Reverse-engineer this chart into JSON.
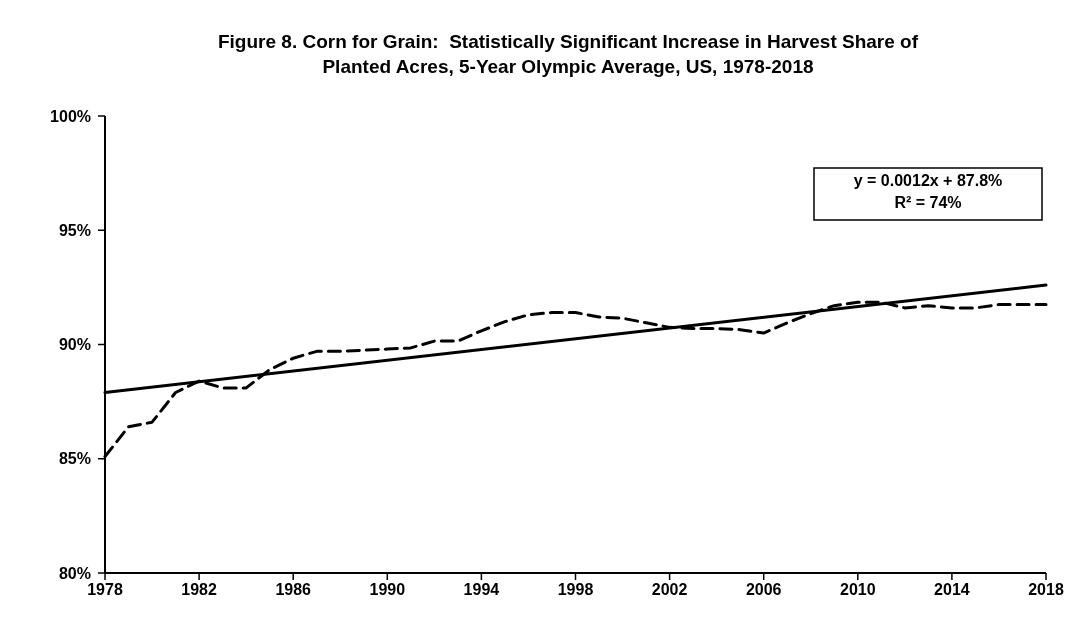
{
  "chart_data": {
    "type": "line",
    "title": "Figure 8. Corn for Grain:  Statistically Significant Increase in Harvest Share of\nPlanted Acres, 5-Year Olympic Average, US, 1978-2018",
    "x": [
      1978,
      1979,
      1980,
      1981,
      1982,
      1983,
      1984,
      1985,
      1986,
      1987,
      1988,
      1989,
      1990,
      1991,
      1992,
      1993,
      1994,
      1995,
      1996,
      1997,
      1998,
      1999,
      2000,
      2001,
      2002,
      2003,
      2004,
      2005,
      2006,
      2007,
      2008,
      2009,
      2010,
      2011,
      2012,
      2013,
      2014,
      2015,
      2016,
      2017,
      2018
    ],
    "series": [
      {
        "color": "#000000",
        "line_style": "dashed",
        "values": [
          85.1,
          86.4,
          86.6,
          87.9,
          88.4,
          88.1,
          88.1,
          88.9,
          89.4,
          89.7,
          89.7,
          89.75,
          89.8,
          89.85,
          90.15,
          90.15,
          90.6,
          91.0,
          91.3,
          91.4,
          91.4,
          91.2,
          91.15,
          90.95,
          90.75,
          90.7,
          90.7,
          90.65,
          90.5,
          90.95,
          91.35,
          91.7,
          91.85,
          91.85,
          91.6,
          91.7,
          91.6,
          91.6,
          91.75,
          91.75,
          91.75
        ]
      },
      {
        "color": "#000000",
        "line_style": "solid",
        "x": [
          1978,
          2018
        ],
        "values": [
          87.9,
          92.6
        ]
      }
    ],
    "xlim": [
      1978,
      2018
    ],
    "xticks": [
      1978,
      1982,
      1986,
      1990,
      1994,
      1998,
      2002,
      2006,
      2010,
      2014,
      2018
    ],
    "ylim": [
      80,
      100
    ],
    "yticks": [
      {
        "value": 80,
        "label": "80%"
      },
      {
        "value": 85,
        "label": "85%"
      },
      {
        "value": 90,
        "label": "90%"
      },
      {
        "value": 95,
        "label": "95%"
      },
      {
        "value": 100,
        "label": "100%"
      }
    ],
    "annotations": [
      "y = 0.0012x + 87.8%",
      "R² = 74%"
    ],
    "grid": false,
    "marker": "none"
  }
}
